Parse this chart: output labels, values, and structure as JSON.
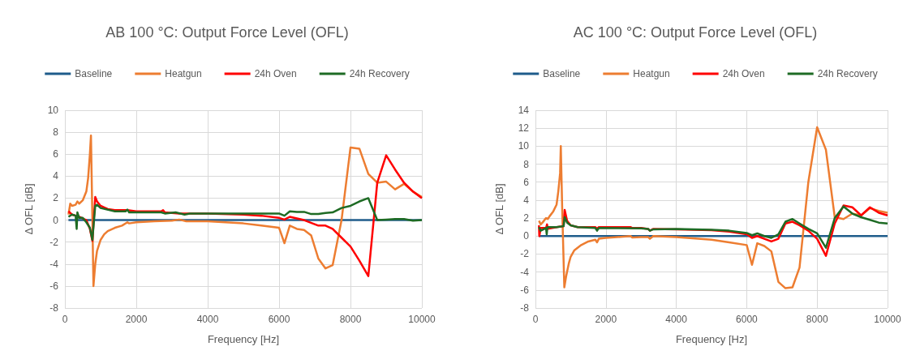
{
  "chart_data": [
    {
      "type": "line",
      "title": "AB 100 °C: Output Force Level (OFL)",
      "xlabel": "Frequency [Hz]",
      "ylabel": "Δ OFL [dB]",
      "xlim": [
        0,
        10000
      ],
      "xticks": [
        0,
        2000,
        4000,
        6000,
        8000,
        10000
      ],
      "ylim": [
        -8,
        10
      ],
      "yticks": [
        -8,
        -6,
        -4,
        -2,
        0,
        2,
        4,
        6,
        8,
        10
      ],
      "grid": true,
      "legend": "top",
      "marker": "none",
      "line_style": "solid",
      "series": [
        {
          "name": "Baseline",
          "color": "#1f5c8b",
          "x": [
            100,
            10000
          ],
          "values": [
            0,
            0
          ]
        },
        {
          "name": "Heatgun",
          "color": "#ed7d31",
          "x": [
            100,
            150,
            200,
            300,
            350,
            400,
            500,
            600,
            650,
            700,
            730,
            760,
            800,
            850,
            900,
            1000,
            1100,
            1200,
            1400,
            1600,
            1750,
            1800,
            2000,
            2500,
            3000,
            3200,
            3400,
            4000,
            5000,
            5500,
            6000,
            6150,
            6300,
            6500,
            6700,
            6900,
            7100,
            7300,
            7500,
            7750,
            8000,
            8250,
            8500,
            8750,
            9000,
            9250,
            9500,
            9750,
            10000
          ],
          "values": [
            0.5,
            1.5,
            1.3,
            1.4,
            1.7,
            1.5,
            1.8,
            2.6,
            3.8,
            6,
            7.7,
            2,
            -6,
            -4,
            -2.8,
            -1.8,
            -1.3,
            -1,
            -0.7,
            -0.5,
            -0.2,
            -0.3,
            -0.2,
            -0.1,
            -0.05,
            0.05,
            -0.1,
            -0.1,
            -0.3,
            -0.5,
            -0.7,
            -2.1,
            -0.5,
            -0.8,
            -0.9,
            -1.4,
            -3.5,
            -4.4,
            -4.1,
            0,
            6.6,
            6.5,
            4.2,
            3.4,
            3.5,
            2.8,
            3.3,
            2.6,
            2.1
          ]
        },
        {
          "name": "24h Oven",
          "color": "#ff0000",
          "x": [
            100,
            200,
            400,
            600,
            700,
            770,
            850,
            900,
            1000,
            1200,
            1400,
            1700,
            1750,
            2000,
            2700,
            2750,
            2800,
            3200,
            3400,
            4000,
            5000,
            5500,
            6000,
            6150,
            6300,
            6700,
            7100,
            7300,
            7500,
            7750,
            8000,
            8250,
            8500,
            8750,
            9000,
            9250,
            9500,
            9750,
            10000
          ],
          "values": [
            0.8,
            0.5,
            0.3,
            0,
            -0.8,
            -1.9,
            2.1,
            1.7,
            1.3,
            1,
            0.9,
            0.9,
            0.9,
            0.8,
            0.8,
            0.9,
            0.7,
            0.6,
            0.6,
            0.6,
            0.5,
            0.4,
            0.2,
            0.05,
            0.3,
            0,
            -0.5,
            -0.5,
            -0.8,
            -1.6,
            -2.4,
            -3.7,
            -5.1,
            3.4,
            5.9,
            4.6,
            3.4,
            2.6,
            2
          ]
        },
        {
          "name": "24h Recovery",
          "color": "#1e6b24",
          "x": [
            100,
            200,
            300,
            330,
            350,
            400,
            500,
            600,
            700,
            770,
            850,
            900,
            1000,
            1400,
            1700,
            1750,
            1800,
            2700,
            2800,
            3100,
            3350,
            3500,
            5000,
            6000,
            6150,
            6300,
            6500,
            6700,
            6900,
            7100,
            7300,
            7500,
            7750,
            8000,
            8250,
            8500,
            8750,
            9000,
            9250,
            9500,
            9750,
            10000
          ],
          "values": [
            0.3,
            0.5,
            0.4,
            -0.8,
            0.7,
            0.2,
            0.2,
            -0.2,
            -0.7,
            -1.8,
            1.3,
            1.4,
            1.1,
            0.8,
            0.8,
            0.95,
            0.7,
            0.7,
            0.6,
            0.7,
            0.5,
            0.6,
            0.6,
            0.6,
            0.4,
            0.8,
            0.75,
            0.75,
            0.55,
            0.55,
            0.65,
            0.7,
            1.1,
            1.3,
            1.7,
            2,
            0,
            0.05,
            0.1,
            0.1,
            -0.05,
            0
          ]
        }
      ]
    },
    {
      "type": "line",
      "title": "AC 100 °C: Output Force Level (OFL)",
      "xlabel": "Frequency [Hz]",
      "ylabel": "Δ OFL [dB]",
      "xlim": [
        0,
        10000
      ],
      "xticks": [
        0,
        2000,
        4000,
        6000,
        8000,
        10000
      ],
      "ylim": [
        -8,
        14
      ],
      "yticks": [
        -8,
        -6,
        -4,
        -2,
        0,
        2,
        4,
        6,
        8,
        10,
        12,
        14
      ],
      "grid": true,
      "legend": "top",
      "marker": "none",
      "line_style": "solid",
      "series": [
        {
          "name": "Baseline",
          "color": "#1f5c8b",
          "x": [
            100,
            10000
          ],
          "values": [
            0,
            0
          ]
        },
        {
          "name": "Heatgun",
          "color": "#ed7d31",
          "x": [
            100,
            150,
            200,
            300,
            350,
            400,
            500,
            600,
            650,
            700,
            720,
            760,
            820,
            870,
            950,
            1000,
            1100,
            1300,
            1500,
            1700,
            1750,
            1800,
            2000,
            2700,
            2750,
            3000,
            3200,
            3250,
            3350,
            4000,
            5000,
            5500,
            6000,
            6150,
            6300,
            6500,
            6700,
            6900,
            7100,
            7300,
            7500,
            7750,
            8000,
            8250,
            8500,
            8750,
            9000,
            9250,
            9500,
            9750,
            10000
          ],
          "values": [
            1.7,
            1.3,
            1.5,
            2,
            1.9,
            2.2,
            2.7,
            3.5,
            5,
            7,
            10,
            3,
            -5.7,
            -4.5,
            -3,
            -2.3,
            -1.6,
            -1,
            -0.6,
            -0.4,
            -0.7,
            -0.3,
            -0.2,
            0,
            -0.15,
            -0.1,
            -0.1,
            -0.3,
            0,
            -0.1,
            -0.4,
            -0.7,
            -1,
            -3.2,
            -0.8,
            -1.1,
            -1.7,
            -5.1,
            -5.8,
            -5.7,
            -3.5,
            6,
            12.1,
            9.6,
            2.1,
            1.9,
            2.5,
            2.3,
            3.1,
            2.8,
            2.6
          ]
        },
        {
          "name": "24h Oven",
          "color": "#ff0000",
          "x": [
            100,
            110,
            150,
            300,
            330,
            350,
            600,
            800,
            830,
            900,
            1000,
            1200,
            1700,
            1750,
            1800,
            2700,
            2750,
            3000,
            3200,
            3250,
            3350,
            4000,
            5000,
            5500,
            6000,
            6150,
            6300,
            6500,
            6700,
            6900,
            7100,
            7300,
            7500,
            7750,
            8000,
            8250,
            8500,
            8750,
            9000,
            9250,
            9500,
            9750,
            10000
          ],
          "values": [
            1.2,
            0,
            0.9,
            0.9,
            1.3,
            0.8,
            1,
            1.1,
            2.9,
            1.7,
            1.2,
            1,
            1,
            0.8,
            1,
            1,
            0.9,
            0.9,
            0.8,
            0.6,
            0.8,
            0.75,
            0.65,
            0.5,
            0.2,
            -0.2,
            0,
            -0.3,
            -0.6,
            -0.3,
            1.4,
            1.6,
            1.2,
            0.6,
            -0.3,
            -2.2,
            1.4,
            3.4,
            3.2,
            2.3,
            3.2,
            2.6,
            2.3
          ]
        },
        {
          "name": "24h Recovery",
          "color": "#1e6b24",
          "x": [
            100,
            150,
            300,
            320,
            340,
            600,
            800,
            830,
            900,
            1000,
            1200,
            1700,
            1750,
            1800,
            3000,
            3200,
            3250,
            3350,
            4000,
            5000,
            5500,
            6000,
            6150,
            6300,
            6500,
            6700,
            6900,
            7100,
            7300,
            7500,
            7750,
            8000,
            8250,
            8500,
            8750,
            9000,
            9250,
            9500,
            9750,
            10000
          ],
          "values": [
            1,
            0.6,
            0.9,
            0.2,
            1,
            1,
            1.1,
            2.1,
            1.5,
            1.2,
            1,
            0.9,
            0.6,
            0.9,
            0.85,
            0.8,
            0.6,
            0.75,
            0.8,
            0.7,
            0.6,
            0.35,
            0.1,
            0.3,
            0,
            -0.2,
            0.2,
            1.6,
            1.9,
            1.4,
            0.8,
            0.3,
            -1.3,
            2,
            3.3,
            2.5,
            2.1,
            1.8,
            1.5,
            1.4
          ]
        }
      ]
    }
  ]
}
